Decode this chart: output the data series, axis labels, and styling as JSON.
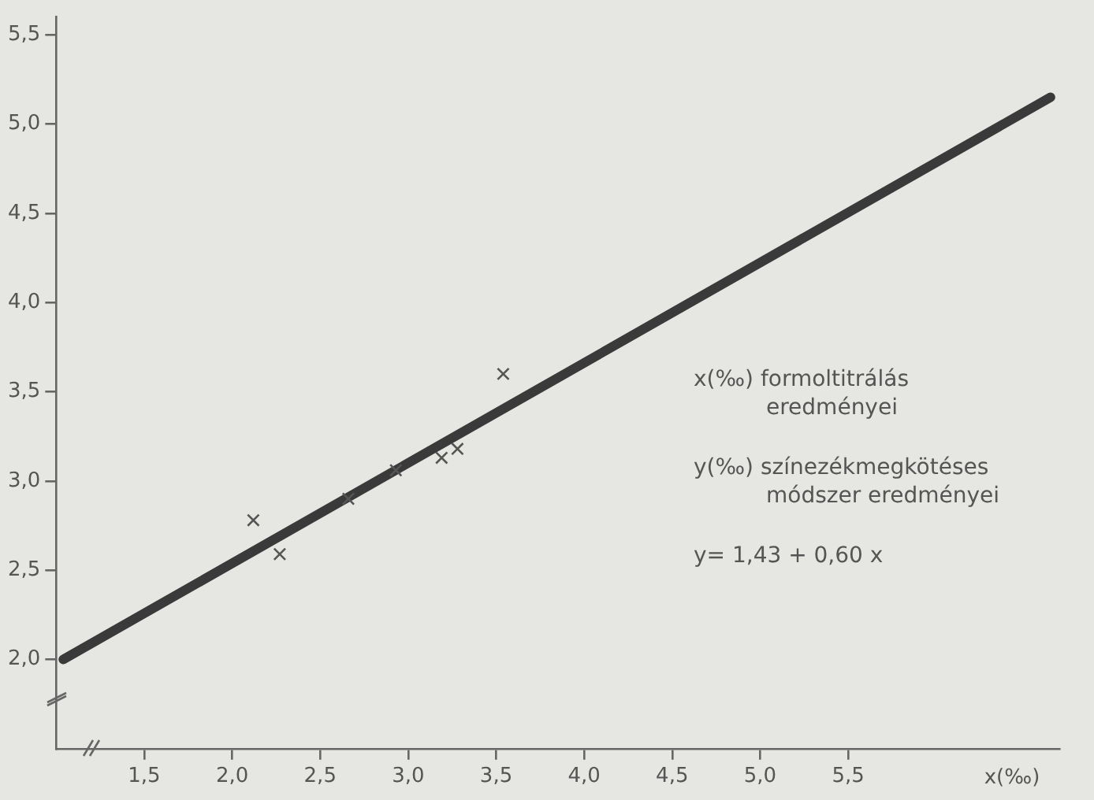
{
  "chart_data": {
    "type": "scatter",
    "xlabel": "x(‰)",
    "xlim": [
      1.0,
      6.7
    ],
    "ylim": [
      1.5,
      5.6
    ],
    "xticks": [
      {
        "value": 1.5,
        "label": "1,5"
      },
      {
        "value": 2.0,
        "label": "2,0"
      },
      {
        "value": 2.5,
        "label": "2,5"
      },
      {
        "value": 3.0,
        "label": "3,0"
      },
      {
        "value": 3.5,
        "label": "3,5"
      },
      {
        "value": 4.0,
        "label": "4,0"
      },
      {
        "value": 4.5,
        "label": "4,5"
      },
      {
        "value": 5.0,
        "label": "5,0"
      },
      {
        "value": 5.5,
        "label": "5,5"
      }
    ],
    "yticks": [
      {
        "value": 2.0,
        "label": "2,0"
      },
      {
        "value": 2.5,
        "label": "2,5"
      },
      {
        "value": 3.0,
        "label": "3,0"
      },
      {
        "value": 3.5,
        "label": "3,5"
      },
      {
        "value": 4.0,
        "label": "4,0"
      },
      {
        "value": 4.5,
        "label": "4,5"
      },
      {
        "value": 5.0,
        "label": "5,0"
      },
      {
        "value": 5.5,
        "label": "5,5"
      }
    ],
    "grid": false,
    "legend": false,
    "marker": "cross",
    "series": [
      {
        "color": "#555555",
        "x": [
          2.12,
          2.27,
          2.66,
          2.93,
          3.19,
          3.28,
          3.54
        ],
        "values": [
          2.78,
          2.59,
          2.9,
          3.06,
          3.13,
          3.18,
          3.6
        ]
      },
      {
        "type": "line",
        "color": "#3a3a3a",
        "marker": "none",
        "line_style": "solid",
        "x": [
          1.04,
          6.65
        ],
        "values": [
          2.0,
          5.15
        ]
      }
    ],
    "annotations": [
      "x(‰) formoltitrálás eredményei",
      "y(‰) színezékmegkötéses módszer eredményei",
      "y= 1,43 + 0,60 x"
    ]
  }
}
